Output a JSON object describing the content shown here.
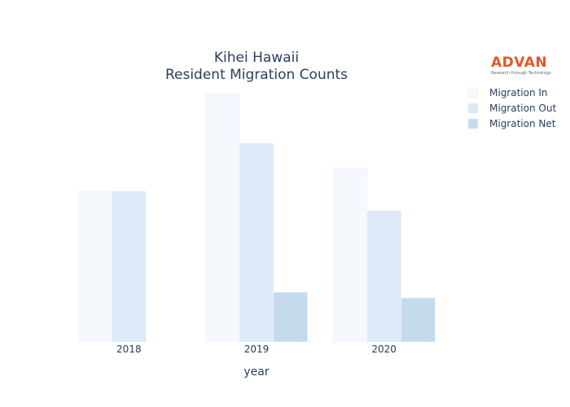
{
  "logo": {
    "text": "ADVAN",
    "tagline": "Research through Technology",
    "color": "#e0582a"
  },
  "chart_data": {
    "type": "bar",
    "title": [
      "Kihei Hawaii",
      "Resident Migration Counts"
    ],
    "xlabel": "year",
    "ylabel": "",
    "categories": [
      "2018",
      "2019",
      "2020"
    ],
    "series": [
      {
        "name": "Migration In",
        "color": "#f5f9fe",
        "values": [
          185,
          305,
          214
        ]
      },
      {
        "name": "Migration Out",
        "color": "#dde9f6",
        "values": [
          185,
          244,
          161
        ]
      },
      {
        "name": "Migration Net",
        "color": "#c6daee",
        "values": [
          0,
          61,
          54
        ]
      }
    ],
    "ylim": [
      0,
      320
    ],
    "grid": false,
    "legend_position": "top-right"
  }
}
